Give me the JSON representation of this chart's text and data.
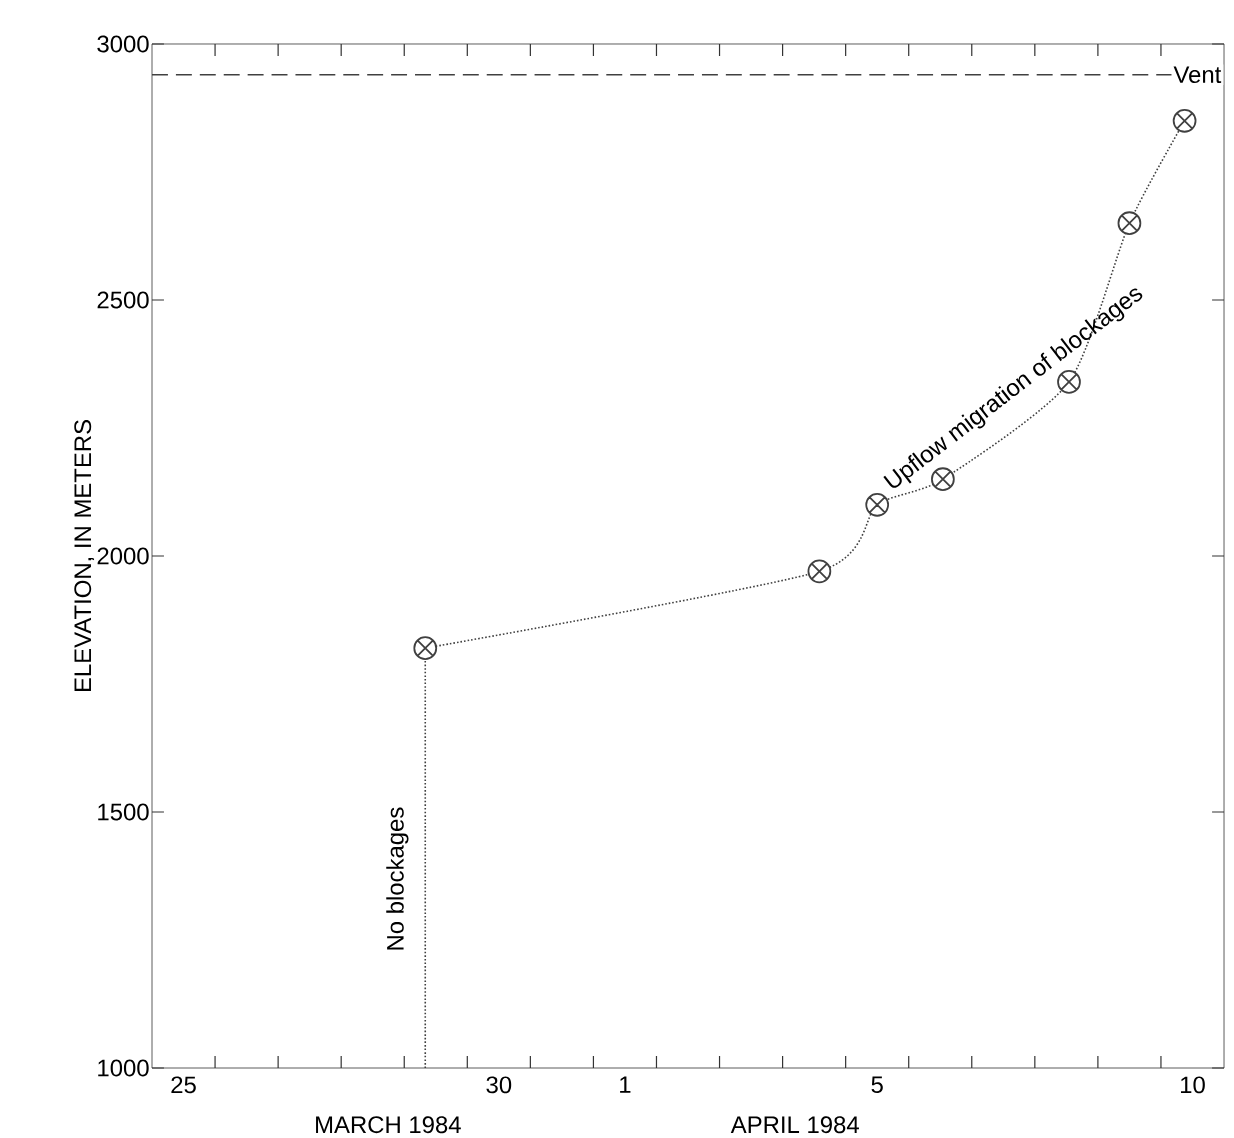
{
  "chart_data": {
    "type": "line",
    "ylabel": "ELEVATION, IN METERS",
    "xlim": [
      "1984-03-25T00:00",
      "1984-04-11T00:00"
    ],
    "ylim": [
      1000,
      3000
    ],
    "yticks": [
      1000,
      1500,
      2000,
      2500,
      3000
    ],
    "xticks": [
      {
        "value": "1984-03-25T12:00",
        "label": "25"
      },
      {
        "value": "1984-03-30T12:00",
        "label": "30"
      },
      {
        "value": "1984-04-01T12:00",
        "label": "1"
      },
      {
        "value": "1984-04-05T12:00",
        "label": "5"
      },
      {
        "value": "1984-04-10T12:00",
        "label": "10"
      },
      {
        "value": "1984-03-26T00:00",
        "label": null
      },
      {
        "value": "1984-03-27T00:00",
        "label": null
      },
      {
        "value": "1984-03-28T00:00",
        "label": null
      },
      {
        "value": "1984-03-29T00:00",
        "label": null
      },
      {
        "value": "1984-03-30T00:00",
        "label": null
      },
      {
        "value": "1984-03-31T00:00",
        "label": null
      },
      {
        "value": "1984-04-01T00:00",
        "label": null
      },
      {
        "value": "1984-04-02T00:00",
        "label": null
      },
      {
        "value": "1984-04-03T00:00",
        "label": null
      },
      {
        "value": "1984-04-04T00:00",
        "label": null
      },
      {
        "value": "1984-04-05T00:00",
        "label": null
      },
      {
        "value": "1984-04-06T00:00",
        "label": null
      },
      {
        "value": "1984-04-07T00:00",
        "label": null
      },
      {
        "value": "1984-04-08T00:00",
        "label": null
      },
      {
        "value": "1984-04-09T00:00",
        "label": null
      },
      {
        "value": "1984-04-10T00:00",
        "label": null
      }
    ],
    "line_style": "dotted",
    "series": [
      {
        "name": "No blockages",
        "color": "#404040",
        "x": [
          "1984-03-29T08:00",
          "1984-03-29T08:00"
        ],
        "values": [
          1000,
          1820
        ]
      },
      {
        "name": "Upflow migration of blockages",
        "color": "#404040",
        "marker": "cross",
        "x": [
          "1984-03-29T08:00",
          "1984-04-04T14:00",
          "1984-04-05T12:00",
          "1984-04-06T13:00",
          "1984-04-08T13:00",
          "1984-04-09T12:00",
          "1984-04-10T09:00"
        ],
        "values": [
          1820,
          1970,
          2100,
          2150,
          2340,
          2650,
          2850
        ]
      }
    ],
    "ref_lines": [
      {
        "axis": "y",
        "value": 2940,
        "label": "Vent",
        "line_style": "dashed",
        "color": "#404040"
      }
    ],
    "annotations": [
      "MARCH 1984",
      "APRIL 1984"
    ]
  }
}
